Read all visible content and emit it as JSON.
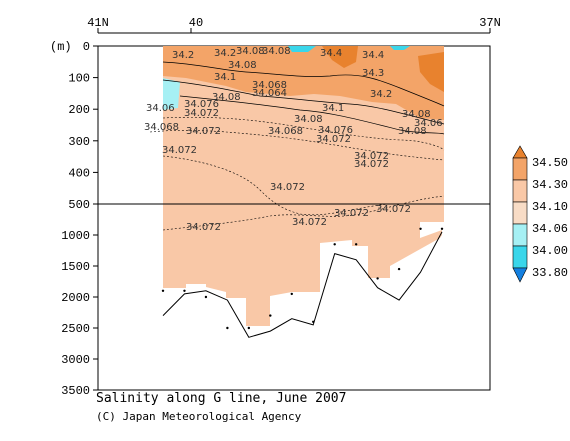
{
  "caption": {
    "title": "Salinity along G line, June 2007",
    "credit": "(C) Japan Meteorological Agency"
  },
  "colors": {
    "fill_34_10_34_30": "#f9c8a7",
    "fill_34_30_34_50": "#f3a468",
    "fill_above_34_50": "#e8822e",
    "fill_34_06_34_10": "#f8dcc6",
    "fill_34_00_34_06": "#a6f0f4",
    "fill_33_80_34_00": "#3ad6ea",
    "fill_below_33_80": "#1480e0",
    "bottom_line": "#000000"
  },
  "chart_data": {
    "type": "heatmap",
    "title": "Salinity along G line, June 2007",
    "x_axis": {
      "position": "top",
      "ticks": [
        "41N",
        "40",
        "37N"
      ]
    },
    "y_axis": {
      "unit_label": "(m)",
      "upper_ticks": [
        0,
        100,
        200,
        300,
        400,
        500
      ],
      "lower_ticks": [
        1000,
        1500,
        2000,
        2500,
        3000,
        3500
      ],
      "break_depth_m": 500
    },
    "colorbar": {
      "levels": [
        "34.50",
        "34.30",
        "34.10",
        "34.06",
        "34.00",
        "33.80"
      ]
    },
    "contour_labels": [
      "34.2",
      "34.2",
      "34.08",
      "34.08",
      "34.4",
      "34.4",
      "34.1",
      "34.08",
      "34.068",
      "34.064",
      "34.08",
      "34.3",
      "34.2",
      "34.06",
      "34.076",
      "34.1",
      "34.08",
      "34.072",
      "34.08",
      "34.068",
      "34.072",
      "34.068",
      "34.076",
      "34.072",
      "34.06",
      "34.08",
      "34.072",
      "34.072",
      "34.072",
      "34.072",
      "34.072",
      "34.072",
      "34.072",
      "34.072"
    ],
    "bottom_depth_m": [
      2300,
      1950,
      1900,
      2050,
      2650,
      2550,
      2350,
      2450,
      1300,
      1400,
      1850,
      2050,
      1600,
      950
    ],
    "cast_depths_m": [
      1900,
      1900,
      2000,
      2500,
      2500,
      2300,
      1950,
      2400,
      1150,
      1150,
      1700,
      1550,
      900,
      900
    ]
  }
}
